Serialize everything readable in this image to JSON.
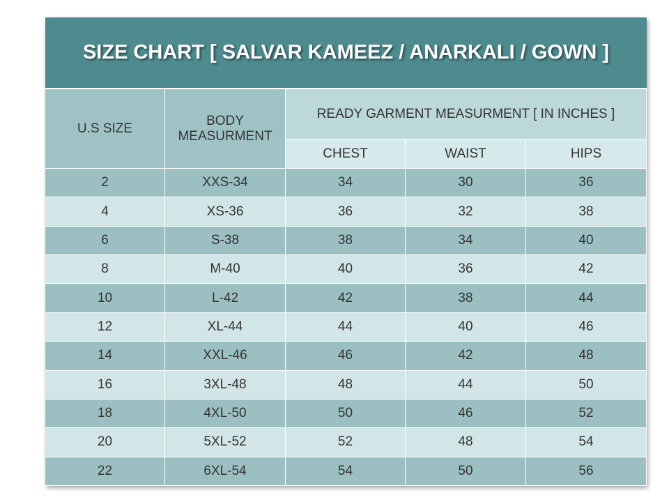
{
  "title": "SIZE CHART [ SALVAR KAMEEZ / ANARKALI / GOWN ]",
  "table": {
    "header": {
      "size": "U.S SIZE",
      "body": "BODY MEASURMENT",
      "ready": "READY GARMENT MEASURMENT [ IN INCHES ]",
      "sub": [
        "CHEST",
        "WAIST",
        "HIPS"
      ]
    },
    "rows": [
      [
        "2",
        "XXS-34",
        "34",
        "30",
        "36"
      ],
      [
        "4",
        "XS-36",
        "36",
        "32",
        "38"
      ],
      [
        "6",
        "S-38",
        "38",
        "34",
        "40"
      ],
      [
        "8",
        "M-40",
        "40",
        "36",
        "42"
      ],
      [
        "10",
        "L-42",
        "42",
        "38",
        "44"
      ],
      [
        "12",
        "XL-44",
        "44",
        "40",
        "46"
      ],
      [
        "14",
        "XXL-46",
        "46",
        "42",
        "48"
      ],
      [
        "16",
        "3XL-48",
        "48",
        "44",
        "50"
      ],
      [
        "18",
        "4XL-50",
        "50",
        "46",
        "52"
      ],
      [
        "20",
        "5XL-52",
        "52",
        "48",
        "54"
      ],
      [
        "22",
        "6XL-54",
        "54",
        "50",
        "56"
      ]
    ]
  }
}
